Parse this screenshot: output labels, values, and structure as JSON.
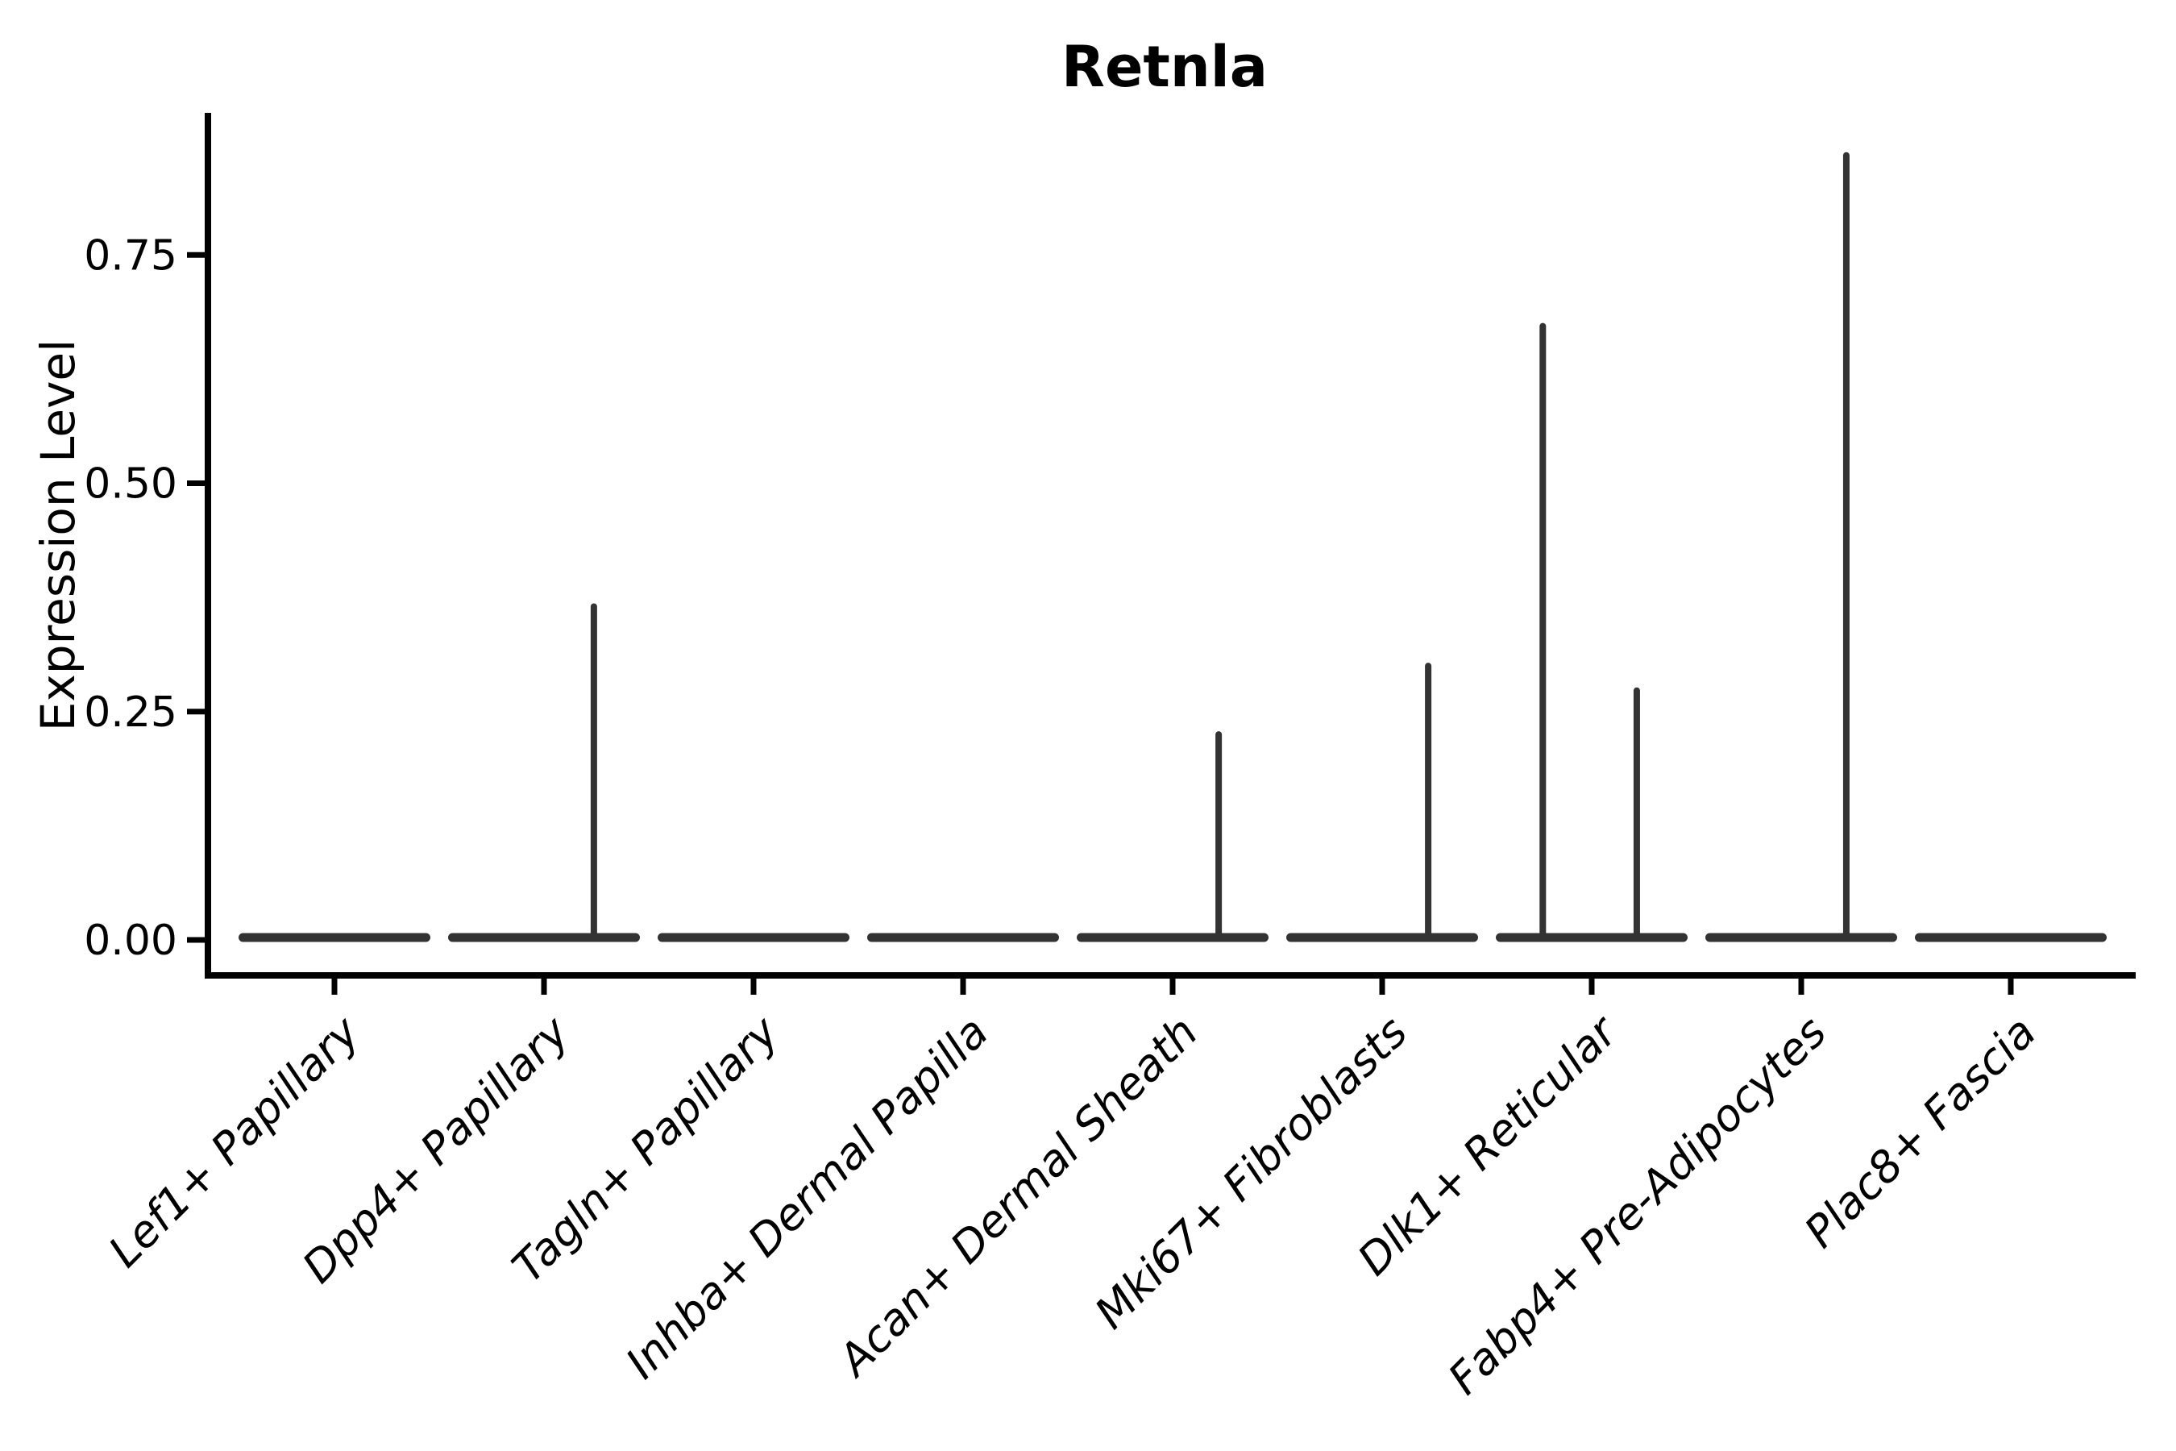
{
  "figure": {
    "title": "Retnla",
    "y_axis_title": "Expression Level"
  },
  "chart_data": {
    "type": "violin",
    "title": "Retnla",
    "xlabel": "",
    "ylabel": "Expression Level",
    "ylim": [
      0,
      0.9
    ],
    "grid": false,
    "legend": null,
    "yticks": [
      {
        "value": 0.0,
        "label": "0.00"
      },
      {
        "value": 0.25,
        "label": "0.25"
      },
      {
        "value": 0.5,
        "label": "0.50"
      },
      {
        "value": 0.75,
        "label": "0.75"
      }
    ],
    "categories": [
      "Lef1+ Papillary",
      "Dpp4+ Papillary",
      "Tagln+ Papillary",
      "Inhba+ Dermal Papilla",
      "Acan+ Dermal Sheath",
      "Mki67+ Fibroblasts",
      "Dlk1+ Reticular",
      "Fabp4+ Pre-Adipocytes",
      "Plac8+ Fascia"
    ],
    "violins": [
      {
        "category": "Lef1+ Papillary",
        "body": "flat-at-zero",
        "spikes": []
      },
      {
        "category": "Dpp4+ Papillary",
        "body": "flat-at-zero",
        "spikes": [
          {
            "value": 0.365,
            "offset_frac": 0.52
          }
        ]
      },
      {
        "category": "Tagln+ Papillary",
        "body": "flat-at-zero",
        "spikes": []
      },
      {
        "category": "Inhba+ Dermal Papilla",
        "body": "flat-at-zero",
        "spikes": []
      },
      {
        "category": "Acan+ Dermal Sheath",
        "body": "flat-at-zero",
        "spikes": [
          {
            "value": 0.225,
            "offset_frac": 0.48
          }
        ]
      },
      {
        "category": "Mki67+ Fibroblasts",
        "body": "flat-at-zero",
        "spikes": [
          {
            "value": 0.3,
            "offset_frac": 0.48
          }
        ]
      },
      {
        "category": "Dlk1+ Reticular",
        "body": "flat-at-zero",
        "spikes": [
          {
            "value": 0.672,
            "offset_frac": -0.51
          },
          {
            "value": 0.273,
            "offset_frac": 0.47
          }
        ]
      },
      {
        "category": "Fabp4+ Pre-Adipocytes",
        "body": "flat-at-zero",
        "spikes": [
          {
            "value": 0.859,
            "offset_frac": 0.47
          }
        ]
      },
      {
        "category": "Plac8+ Fascia",
        "body": "flat-at-zero",
        "spikes": []
      }
    ],
    "colors": {
      "violin": "#333333",
      "axis": "#000000",
      "text": "#000000",
      "background": "#ffffff"
    }
  }
}
